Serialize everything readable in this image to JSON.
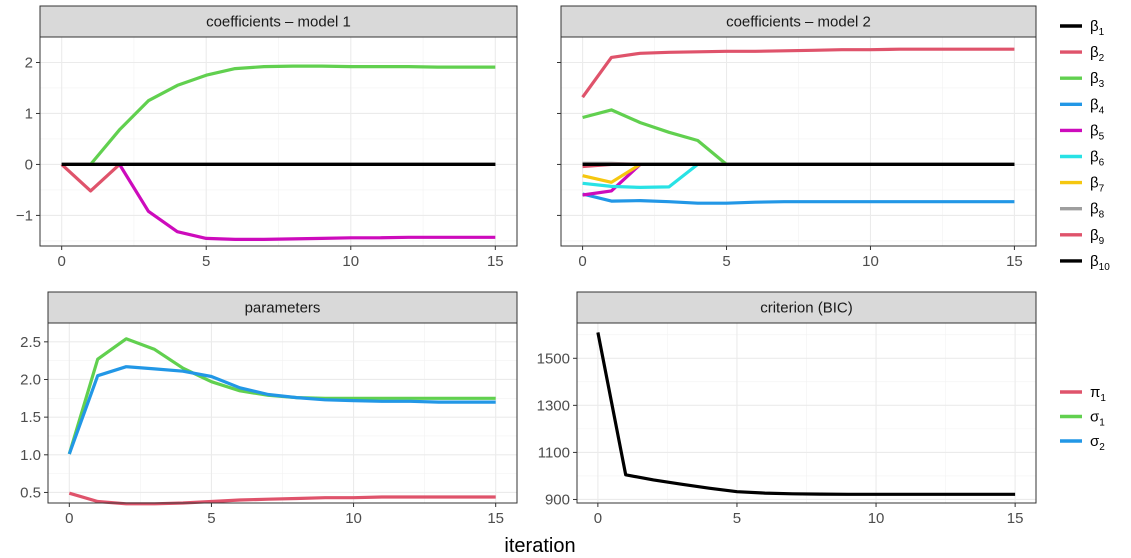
{
  "figure": {
    "xlabel": "iteration"
  },
  "chart_data": [
    {
      "type": "line",
      "title": "coefficients – model 1",
      "x": [
        0,
        1,
        2,
        3,
        4,
        5,
        6,
        7,
        8,
        9,
        10,
        11,
        12,
        13,
        14,
        15
      ],
      "xticks": [
        "0",
        "5",
        "10",
        "15"
      ],
      "xtick_values": [
        0,
        5,
        10,
        15
      ],
      "yticks": [
        "−1",
        "0",
        "1",
        "2"
      ],
      "ytick_values": [
        -1,
        0,
        1,
        2
      ],
      "xlim": [
        -0.75,
        15.75
      ],
      "ylim": [
        -1.6,
        2.5
      ],
      "grid": true,
      "series": [
        {
          "legend_ref": "beta_legend.0",
          "color": "#000000",
          "values": [
            0,
            0,
            0,
            0,
            0,
            0,
            0,
            0,
            0,
            0,
            0,
            0,
            0,
            0,
            0,
            0
          ]
        },
        {
          "legend_ref": "beta_legend.1",
          "color": "#DF536B",
          "values": [
            0,
            -0.52,
            0,
            null,
            null,
            null,
            null,
            null,
            null,
            null,
            null,
            null,
            null,
            null,
            null,
            null
          ]
        },
        {
          "legend_ref": "beta_legend.2",
          "color": "#61D04F",
          "values": [
            null,
            0,
            0.68,
            1.25,
            1.55,
            1.75,
            1.88,
            1.92,
            1.93,
            1.93,
            1.92,
            1.92,
            1.92,
            1.91,
            1.91,
            1.91
          ]
        },
        {
          "legend_ref": "beta_legend.4",
          "color": "#CD0BBC",
          "values": [
            null,
            null,
            0,
            -0.92,
            -1.32,
            -1.45,
            -1.47,
            -1.47,
            -1.46,
            -1.45,
            -1.44,
            -1.44,
            -1.43,
            -1.43,
            -1.43,
            -1.43
          ]
        },
        {
          "legend_ref": "beta_legend.9",
          "color": "#000000",
          "values": [
            0,
            0,
            0,
            0,
            0,
            0,
            0,
            0,
            0,
            0,
            0,
            0,
            0,
            0,
            0,
            0
          ]
        }
      ]
    },
    {
      "type": "line",
      "title": "coefficients – model 2",
      "x": [
        0,
        1,
        2,
        3,
        4,
        5,
        6,
        7,
        8,
        9,
        10,
        11,
        12,
        13,
        14,
        15
      ],
      "xticks": [
        "0",
        "5",
        "10",
        "15"
      ],
      "xtick_values": [
        0,
        5,
        10,
        15
      ],
      "yticks": [],
      "ytick_values": [
        -1,
        0,
        1,
        2
      ],
      "xlim": [
        -0.75,
        15.75
      ],
      "ylim": [
        -1.6,
        2.5
      ],
      "grid": true,
      "series": [
        {
          "legend_ref": "beta_legend.0",
          "color": "#000000",
          "values": [
            0,
            0,
            0,
            0,
            0,
            0,
            0,
            0,
            0,
            0,
            0,
            0,
            0,
            0,
            0,
            0
          ]
        },
        {
          "legend_ref": "beta_legend.1",
          "color": "#DF536B",
          "values": [
            1.32,
            2.1,
            2.18,
            2.2,
            2.21,
            2.22,
            2.22,
            2.23,
            2.24,
            2.25,
            2.25,
            2.26,
            2.26,
            2.26,
            2.26,
            2.26
          ]
        },
        {
          "legend_ref": "beta_legend.2",
          "color": "#61D04F",
          "values": [
            0.92,
            1.07,
            0.82,
            0.63,
            0.47,
            0,
            null,
            null,
            null,
            null,
            null,
            null,
            null,
            null,
            null,
            null
          ]
        },
        {
          "legend_ref": "beta_legend.3",
          "color": "#2297E6",
          "values": [
            -0.58,
            -0.72,
            -0.71,
            -0.73,
            -0.76,
            -0.76,
            -0.74,
            -0.73,
            -0.73,
            -0.73,
            -0.73,
            -0.73,
            -0.73,
            -0.73,
            -0.73,
            -0.73
          ]
        },
        {
          "legend_ref": "beta_legend.4",
          "color": "#CD0BBC",
          "values": [
            -0.6,
            -0.52,
            0,
            null,
            null,
            null,
            null,
            null,
            null,
            null,
            null,
            null,
            null,
            null,
            null,
            null
          ]
        },
        {
          "legend_ref": "beta_legend.5",
          "color": "#28E2E5",
          "values": [
            -0.37,
            -0.43,
            -0.45,
            -0.44,
            0,
            null,
            null,
            null,
            null,
            null,
            null,
            null,
            null,
            null,
            null,
            null
          ]
        },
        {
          "legend_ref": "beta_legend.6",
          "color": "#F5C710",
          "values": [
            -0.22,
            -0.35,
            0,
            null,
            null,
            null,
            null,
            null,
            null,
            null,
            null,
            null,
            null,
            null,
            null,
            null
          ]
        },
        {
          "legend_ref": "beta_legend.7",
          "color": "#9E9E9E",
          "values": [
            0.02,
            0.02,
            0,
            null,
            null,
            null,
            null,
            null,
            null,
            null,
            null,
            null,
            null,
            null,
            null,
            null
          ]
        },
        {
          "legend_ref": "beta_legend.8",
          "color": "#DF536B",
          "values": [
            -0.04,
            0,
            0,
            null,
            null,
            null,
            null,
            null,
            null,
            null,
            null,
            null,
            null,
            null,
            null,
            null
          ]
        },
        {
          "legend_ref": "beta_legend.9",
          "color": "#000000",
          "values": [
            0,
            0,
            0,
            0,
            0,
            0,
            0,
            0,
            0,
            0,
            0,
            0,
            0,
            0,
            0,
            0
          ]
        }
      ]
    },
    {
      "type": "line",
      "title": "parameters",
      "x": [
        0,
        1,
        2,
        3,
        4,
        5,
        6,
        7,
        8,
        9,
        10,
        11,
        12,
        13,
        14,
        15
      ],
      "xticks": [
        "0",
        "5",
        "10",
        "15"
      ],
      "xtick_values": [
        0,
        5,
        10,
        15
      ],
      "yticks": [
        "0.5",
        "1.0",
        "1.5",
        "2.0",
        "2.5"
      ],
      "ytick_values": [
        0.5,
        1.0,
        1.5,
        2.0,
        2.5
      ],
      "xlim": [
        -0.75,
        15.75
      ],
      "ylim": [
        0.36,
        2.75
      ],
      "grid": true,
      "series": [
        {
          "legend_ref": "param_legend.0",
          "color": "#DF536B",
          "values": [
            0.49,
            0.38,
            0.35,
            0.35,
            0.36,
            0.38,
            0.4,
            0.41,
            0.42,
            0.43,
            0.43,
            0.44,
            0.44,
            0.44,
            0.44,
            0.44
          ]
        },
        {
          "legend_ref": "param_legend.1",
          "color": "#61D04F",
          "values": [
            1.01,
            2.27,
            2.54,
            2.4,
            2.15,
            1.97,
            1.85,
            1.79,
            1.76,
            1.75,
            1.75,
            1.75,
            1.75,
            1.75,
            1.75,
            1.75
          ]
        },
        {
          "legend_ref": "param_legend.2",
          "color": "#2297E6",
          "values": [
            1.01,
            2.05,
            2.17,
            2.14,
            2.11,
            2.04,
            1.89,
            1.8,
            1.76,
            1.73,
            1.72,
            1.71,
            1.71,
            1.7,
            1.7,
            1.7
          ]
        }
      ]
    },
    {
      "type": "line",
      "title": "criterion  (BIC)",
      "x": [
        0,
        1,
        2,
        3,
        4,
        5,
        6,
        7,
        8,
        9,
        10,
        11,
        12,
        13,
        14,
        15
      ],
      "xticks": [
        "0",
        "5",
        "10",
        "15"
      ],
      "xtick_values": [
        0,
        5,
        10,
        15
      ],
      "yticks": [
        "900",
        "1100",
        "1300",
        "1500"
      ],
      "ytick_values": [
        900,
        1100,
        1300,
        1500
      ],
      "xlim": [
        -0.75,
        15.75
      ],
      "ylim": [
        885,
        1650
      ],
      "grid": true,
      "series": [
        {
          "color": "#000000",
          "values": [
            1610,
            1005,
            983,
            965,
            948,
            933,
            927,
            924,
            923,
            922,
            922,
            922,
            922,
            922,
            922,
            922
          ]
        }
      ]
    }
  ],
  "beta_legend": [
    {
      "symbol": "β",
      "sub": "1",
      "color": "#000000"
    },
    {
      "symbol": "β",
      "sub": "2",
      "color": "#DF536B"
    },
    {
      "symbol": "β",
      "sub": "3",
      "color": "#61D04F"
    },
    {
      "symbol": "β",
      "sub": "4",
      "color": "#2297E6"
    },
    {
      "symbol": "β",
      "sub": "5",
      "color": "#CD0BBC"
    },
    {
      "symbol": "β",
      "sub": "6",
      "color": "#28E2E5"
    },
    {
      "symbol": "β",
      "sub": "7",
      "color": "#F5C710"
    },
    {
      "symbol": "β",
      "sub": "8",
      "color": "#9E9E9E"
    },
    {
      "symbol": "β",
      "sub": "9",
      "color": "#DF536B"
    },
    {
      "symbol": "β",
      "sub": "10",
      "color": "#000000"
    }
  ],
  "param_legend": [
    {
      "symbol": "π",
      "sub": "1",
      "color": "#DF536B"
    },
    {
      "symbol": "σ",
      "sub": "1",
      "color": "#61D04F"
    },
    {
      "symbol": "σ",
      "sub": "2",
      "color": "#2297E6"
    }
  ]
}
